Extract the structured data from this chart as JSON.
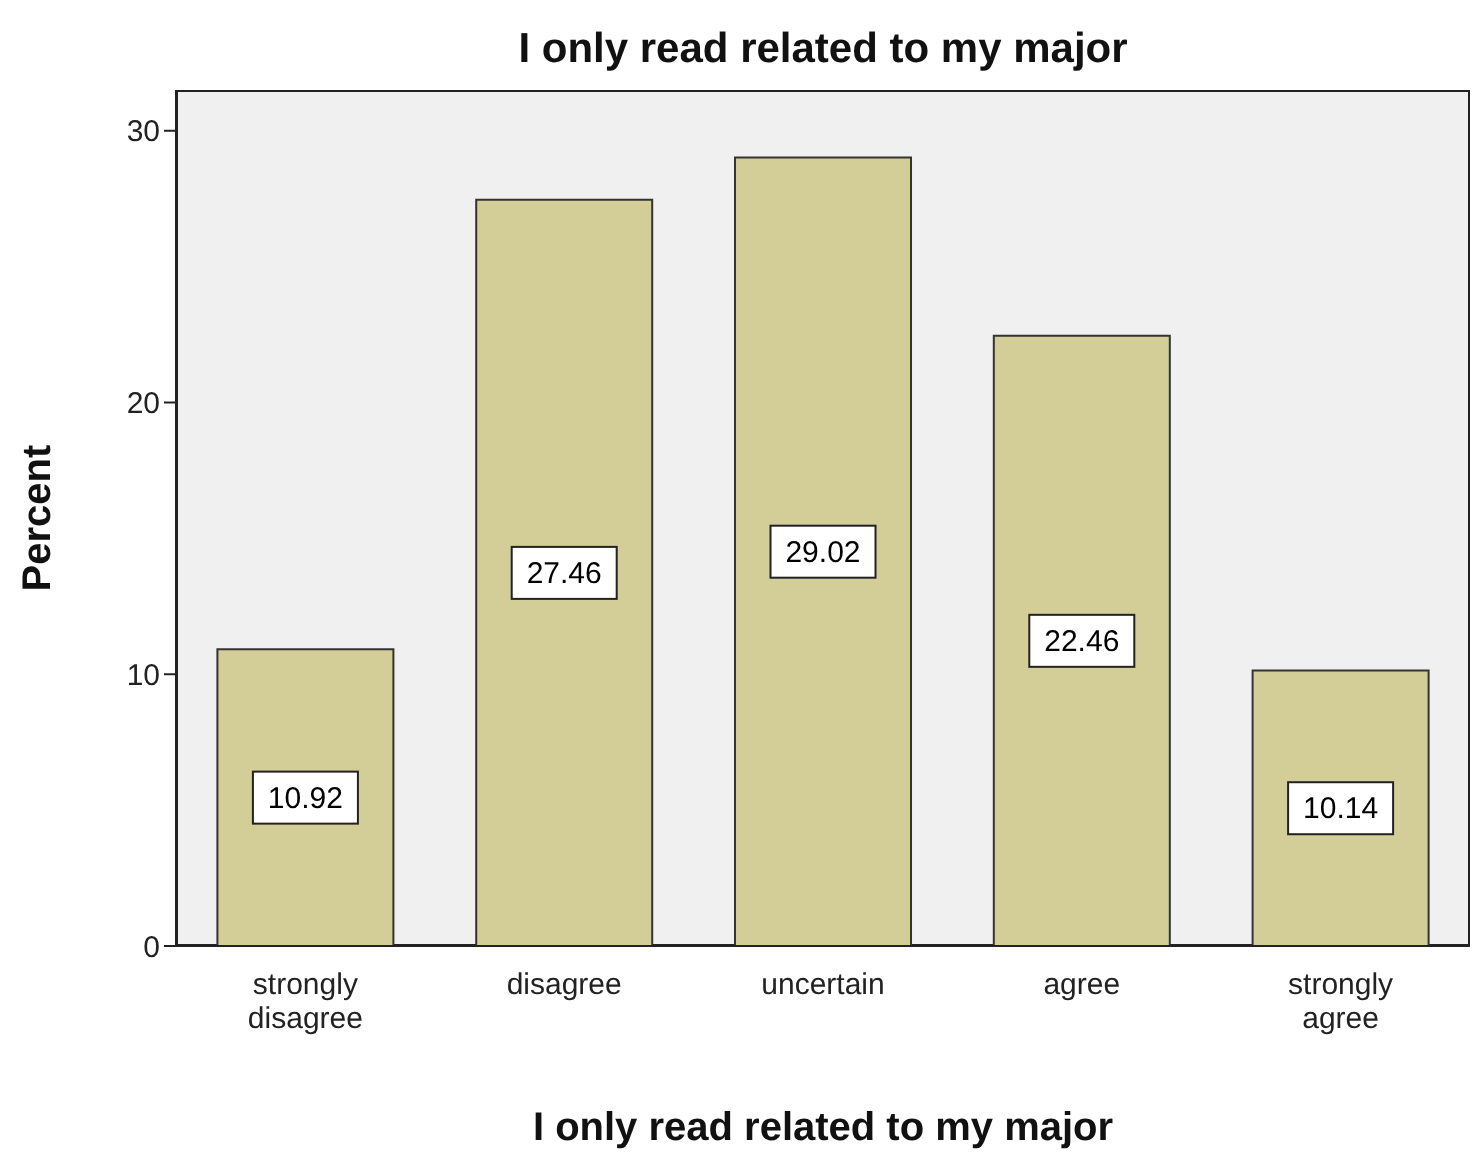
{
  "chart_data": {
    "type": "bar",
    "title": "I only read related to my major",
    "xlabel": "I only read related to my major",
    "ylabel": "Percent",
    "categories": [
      "strongly disagree",
      "disagree",
      "uncertain",
      "agree",
      "strongly agree"
    ],
    "values": [
      10.92,
      27.46,
      29.02,
      22.46,
      10.14
    ],
    "color": "#d3ce98",
    "ylim": [
      0,
      31.5
    ],
    "yticks": [
      0,
      10,
      20,
      30
    ],
    "data_labels": true
  }
}
